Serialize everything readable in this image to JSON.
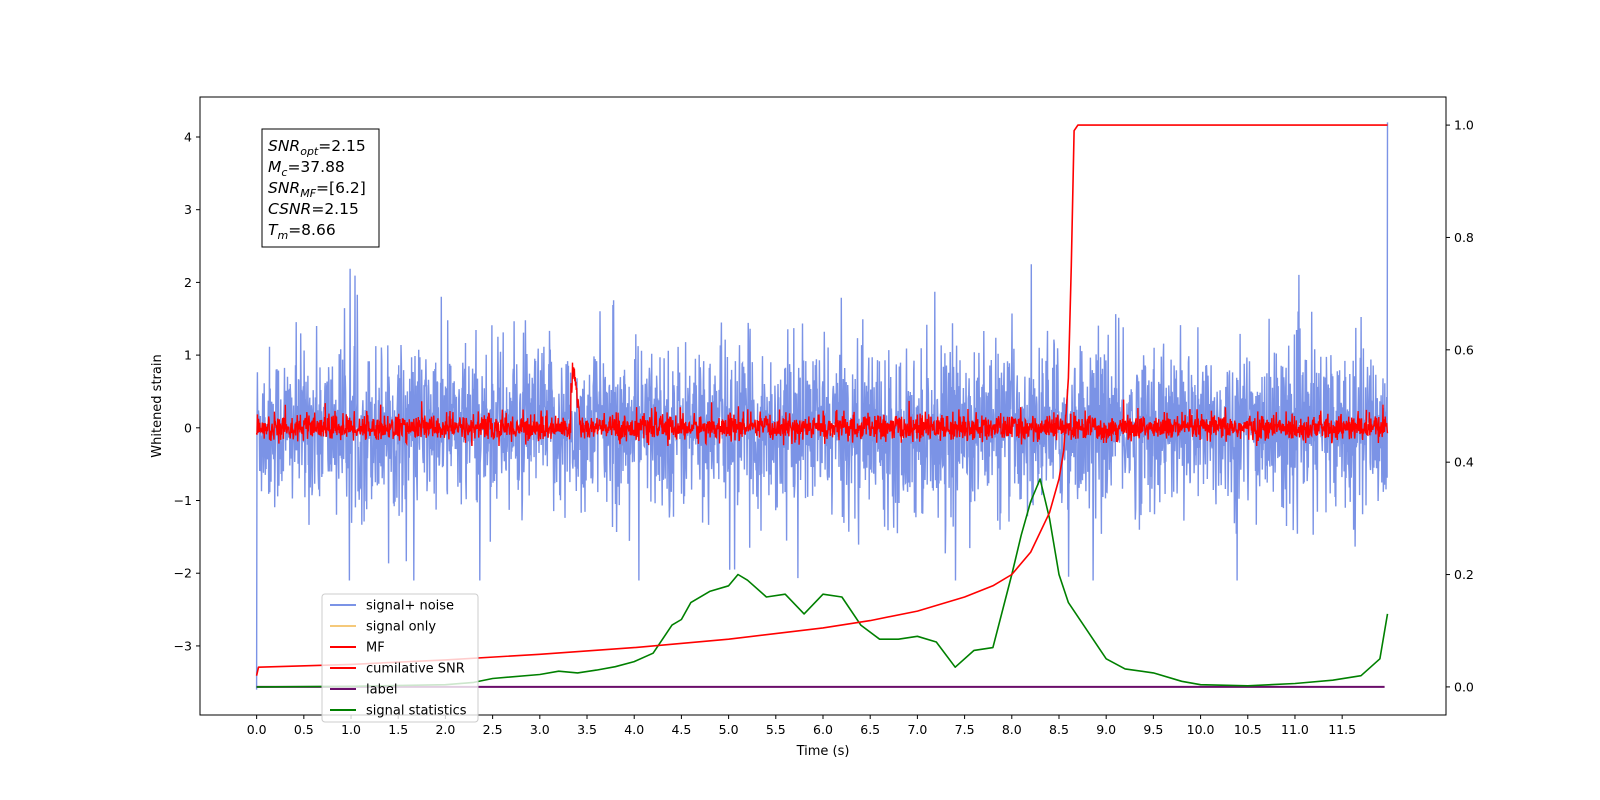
{
  "chart_data": {
    "type": "line",
    "xlabel": "Time (s)",
    "ylabel": "Whitened strain",
    "x_ticks": [
      "0.0",
      "0.5",
      "1.0",
      "1.5",
      "2.0",
      "2.5",
      "3.0",
      "3.5",
      "4.0",
      "4.5",
      "5.0",
      "5.5",
      "6.0",
      "6.5",
      "7.0",
      "7.5",
      "8.0",
      "8.5",
      "9.0",
      "9.5",
      "10.0",
      "10.5",
      "11.0",
      "11.5"
    ],
    "xlim": [
      -0.6,
      12.6
    ],
    "ylim_left": [
      -3.95,
      4.55
    ],
    "y_ticks_left": [
      "−3",
      "−2",
      "−1",
      "0",
      "1",
      "2",
      "3",
      "4"
    ],
    "ylim_right": [
      -0.05,
      1.05
    ],
    "y_ticks_right": [
      "0.0",
      "0.2",
      "0.4",
      "0.6",
      "0.8",
      "1.0"
    ],
    "info_box": {
      "lines": [
        {
          "var": "SNR",
          "sub": "opt",
          "value": "=2.15"
        },
        {
          "var": "M",
          "sub": "c",
          "value": "=37.88"
        },
        {
          "var": "SNR",
          "sub": "MF",
          "value": "=[6.2]"
        },
        {
          "var": "CSNR",
          "sub": "",
          "value": "=2.15"
        },
        {
          "var": "T",
          "sub": "m",
          "value": "=8.66"
        }
      ]
    },
    "legend": {
      "placement": "lower-left",
      "entries": [
        {
          "label": "signal+ noise",
          "color": "#7b93e6"
        },
        {
          "label": "signal only",
          "color": "#f5c97a"
        },
        {
          "label": "MF",
          "color": "#ff0000"
        },
        {
          "label": "cumilative SNR",
          "color": "#ff0000"
        },
        {
          "label": "label",
          "color": "#6a0d6a"
        },
        {
          "label": "signal statistics",
          "color": "#008000"
        }
      ]
    },
    "series": [
      {
        "name": "signal+ noise",
        "axis": "left",
        "color": "#7b93e6",
        "t_start": 0.0,
        "t_end": 11.98,
        "approx_range": [
          -2.1,
          2.3
        ],
        "note_values": [
          [
            0.0,
            -3.6
          ],
          [
            11.98,
            4.2
          ]
        ]
      },
      {
        "name": "signal only",
        "axis": "left",
        "color": "#f5c97a",
        "values": []
      },
      {
        "name": "MF",
        "axis": "left",
        "color": "#ff0000",
        "t_start": 0.0,
        "t_end": 11.98,
        "approx_range": [
          -0.25,
          0.55
        ]
      },
      {
        "name": "cumilative SNR",
        "axis": "right",
        "color": "#ff0000",
        "x": [
          0.0,
          0.02,
          1.0,
          2.0,
          3.0,
          4.0,
          5.0,
          6.0,
          6.5,
          7.0,
          7.5,
          7.8,
          8.0,
          8.2,
          8.4,
          8.5,
          8.55,
          8.6,
          8.63,
          8.66,
          8.7,
          11.98
        ],
        "y": [
          0.02,
          0.035,
          0.04,
          0.048,
          0.058,
          0.07,
          0.085,
          0.105,
          0.118,
          0.135,
          0.16,
          0.18,
          0.2,
          0.24,
          0.31,
          0.37,
          0.42,
          0.55,
          0.75,
          0.99,
          1.0,
          1.0
        ]
      },
      {
        "name": "label",
        "axis": "right",
        "color": "#6a0d6a",
        "x": [
          0.0,
          11.95
        ],
        "y": [
          0.0,
          0.0
        ]
      },
      {
        "name": "signal statistics",
        "axis": "right",
        "color": "#008000",
        "x": [
          0.0,
          1.0,
          2.0,
          2.3,
          2.5,
          3.0,
          3.2,
          3.4,
          3.6,
          3.8,
          4.0,
          4.2,
          4.4,
          4.5,
          4.6,
          4.8,
          5.0,
          5.1,
          5.2,
          5.4,
          5.6,
          5.8,
          6.0,
          6.2,
          6.4,
          6.6,
          6.8,
          7.0,
          7.2,
          7.4,
          7.6,
          7.8,
          8.0,
          8.1,
          8.2,
          8.3,
          8.4,
          8.5,
          8.6,
          8.8,
          9.0,
          9.2,
          9.5,
          9.8,
          10.0,
          10.5,
          11.0,
          11.4,
          11.7,
          11.9,
          11.98
        ],
        "y": [
          0.0,
          0.001,
          0.004,
          0.008,
          0.015,
          0.022,
          0.028,
          0.025,
          0.03,
          0.036,
          0.045,
          0.06,
          0.11,
          0.12,
          0.15,
          0.17,
          0.18,
          0.2,
          0.19,
          0.16,
          0.165,
          0.13,
          0.165,
          0.16,
          0.11,
          0.085,
          0.085,
          0.09,
          0.08,
          0.035,
          0.065,
          0.07,
          0.2,
          0.27,
          0.33,
          0.37,
          0.3,
          0.2,
          0.15,
          0.1,
          0.05,
          0.032,
          0.025,
          0.01,
          0.004,
          0.002,
          0.006,
          0.012,
          0.02,
          0.05,
          0.13
        ]
      }
    ]
  }
}
